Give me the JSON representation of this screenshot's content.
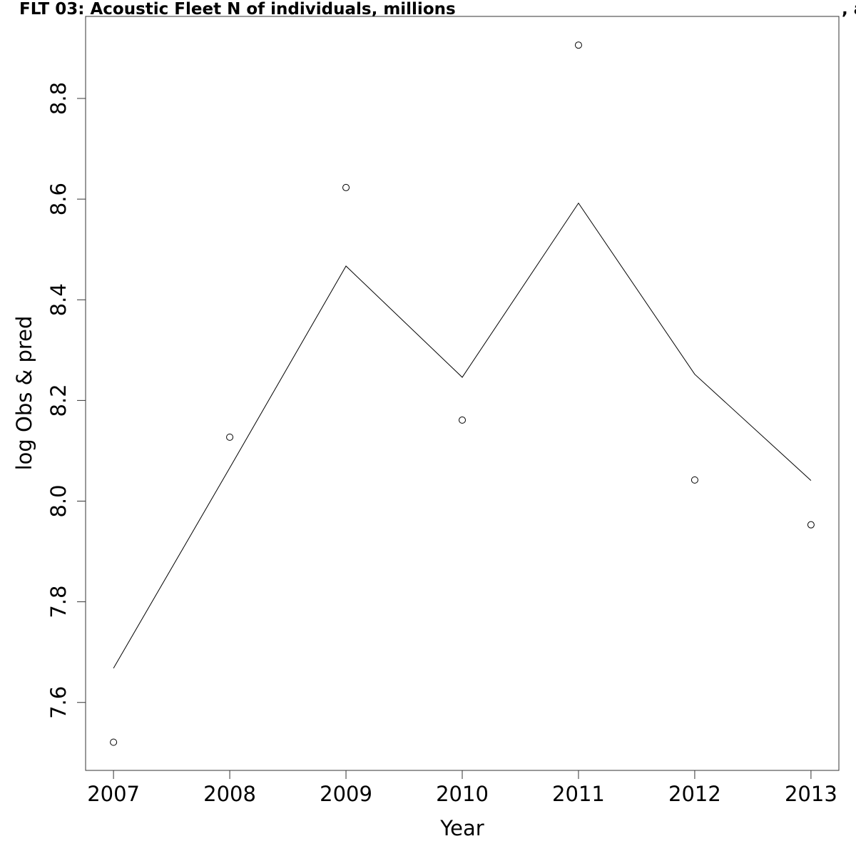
{
  "chart_data": {
    "type": "line",
    "title": "FLT 03: Acoustic Fleet   N of individuals, millions",
    "title_tail": ", a",
    "xlabel": "Year",
    "ylabel": "log Obs & pred",
    "x": [
      2007,
      2008,
      2009,
      2010,
      2011,
      2012,
      2013
    ],
    "series": [
      {
        "mode": "points",
        "color": "#000000",
        "values": [
          7.521,
          8.127,
          8.623,
          8.161,
          8.906,
          8.042,
          7.953
        ]
      },
      {
        "mode": "line",
        "color": "#000000",
        "values": [
          7.668,
          8.066,
          8.467,
          8.246,
          8.592,
          8.252,
          8.041
        ]
      }
    ],
    "xlim": [
      2006.76,
      2013.24
    ],
    "xticks": [
      2007,
      2008,
      2009,
      2010,
      2011,
      2012,
      2013
    ],
    "ylim": [
      7.465,
      8.963
    ],
    "yticks": [
      {
        "value": 7.6,
        "label": "7.6"
      },
      {
        "value": 7.8,
        "label": "7.8"
      },
      {
        "value": 8.0,
        "label": "8.0"
      },
      {
        "value": 8.2,
        "label": "8.2"
      },
      {
        "value": 8.4,
        "label": "8.4"
      },
      {
        "value": 8.6,
        "label": "8.6"
      },
      {
        "value": 8.8,
        "label": "8.8"
      }
    ]
  }
}
